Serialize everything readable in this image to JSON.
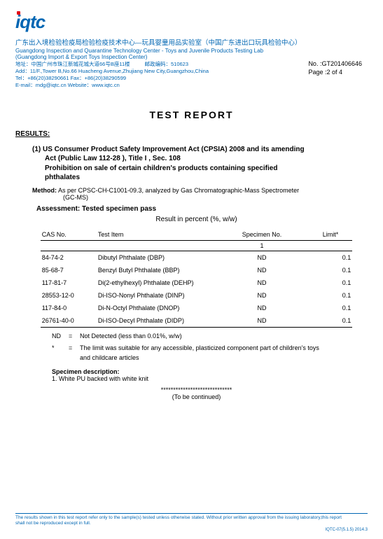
{
  "logo_text": "iqtc",
  "header": {
    "cn": "广东出入境检验检疫局检验检疫技术中心—玩具婴童用品实验室（中国广东进出口玩具检验中心）",
    "en1": "Guangdong Inspection and Quarantine Technology Center - Toys and Juvenile Products Testing Lab",
    "en2": "(Guangdong Import & Export Toys Inspection Center)",
    "addr_l1a": "地址：中国广州市珠江新城花城大道66号B座11楼",
    "addr_l1b": "邮政编码：510623",
    "addr_l2": "Add：11/F.,Tower B,No.66 Huacheng Avenue,Zhujiang New City,Guangzhou,China",
    "addr_l3": "Tel：+86(20)38290661  Fax：+86(20)38290599",
    "addr_l4": "E-mail：mdg@iqtc.cn    Website：www.iqtc.cn",
    "doc_no_label": "No.   :",
    "doc_no": "GT201406646",
    "page_label": "Page :",
    "page": "2 of 4"
  },
  "title": "TEST   REPORT",
  "results_heading": "RESULTS:",
  "section": {
    "num": "(1)",
    "reg_l1": "US Consumer Product Safety Improvement Act (CPSIA) 2008 and its amending",
    "reg_l2": "Act (Public Law 112-28 ), Title I , Sec. 108",
    "reg_l3": "Prohibition on sale of certain children's products containing specified",
    "reg_l4": "phthalates",
    "method_label": "Method:",
    "method_text": "As per CPSC-CH-C1001-09.3, analyzed by Gas Chromatographic-Mass Spectrometer",
    "method_sub": "(GC-MS)",
    "assessment": "Assessment: Tested specimen pass",
    "result_caption": "Result in percent (%, w/w)"
  },
  "table": {
    "col_cas": "CAS No.",
    "col_item": "Test Item",
    "col_spec": "Specimen No.",
    "col_limit": "Limit*",
    "spec_num": "1",
    "rows": [
      {
        "cas": "84-74-2",
        "item": "Dibutyl Phthalate (DBP)",
        "spec": "ND",
        "limit": "0.1"
      },
      {
        "cas": "85-68-7",
        "item": "Benzyl Butyl Phthalate (BBP)",
        "spec": "ND",
        "limit": "0.1"
      },
      {
        "cas": "117-81-7",
        "item": "Di(2-ethylhexyl) Phthalate (DEHP)",
        "spec": "ND",
        "limit": "0.1"
      },
      {
        "cas": "28553-12-0",
        "item": "Di-ISO-Nonyl Phthalate (DINP)",
        "spec": "ND",
        "limit": "0.1"
      },
      {
        "cas": "117-84-0",
        "item": "Di-N-Octyl Phthalate (DNOP)",
        "spec": "ND",
        "limit": "0.1"
      },
      {
        "cas": "26761-40-0",
        "item": "Di-ISO-Decyl Phthalate (DIDP)",
        "spec": "ND",
        "limit": "0.1"
      }
    ]
  },
  "notes": {
    "nd_sym": "ND",
    "nd_eq": "=",
    "nd_txt": "Not Detected (less than 0.01%, w/w)",
    "star_sym": "*",
    "star_eq": "=",
    "star_txt1": "The limit was suitable for any accessible, plasticized component part of children's toys",
    "star_txt2": "and childcare articles"
  },
  "spec_desc": {
    "hd": "Specimen description:",
    "item1": "1.    White PU backed with white knit"
  },
  "stars": "*****************************",
  "tbc": "(To be continued)",
  "footer": {
    "l1": "The results shown in this test report refer only to the sample(s) tested unless otherwise stated. Without prior written approval from the issuing laboratory,this report",
    "l2": "shall not be reproduced except in full.",
    "meta": "IQTC-07(5.1.5) 2014.3"
  }
}
